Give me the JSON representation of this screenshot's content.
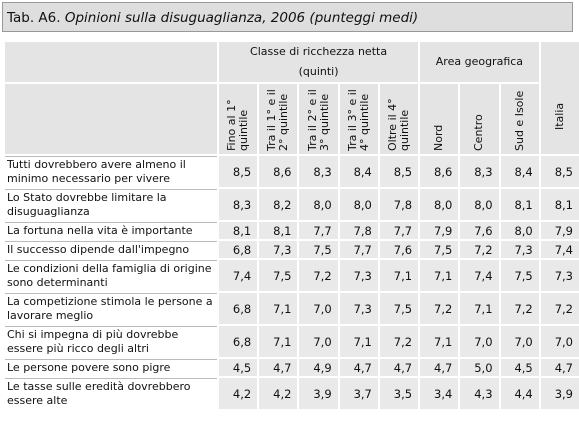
{
  "title": {
    "label": "Tab. A6.",
    "text": "Opinioni sulla disuguaglianza, 2006 (punteggi medi)"
  },
  "table": {
    "groups": [
      {
        "lines": [
          "Classe di ricchezza netta",
          "(quinti)"
        ],
        "span": 5
      },
      {
        "lines": [
          "Area geografica"
        ],
        "span": 3
      }
    ],
    "columns": [
      "Fino al 1° quintile",
      "Tra il 1° e il 2° quintile",
      "Tra il 2° e il 3° quintile",
      "Tra il 3° e il 4° quintile",
      "Oltre il 4° quintile",
      "Nord",
      "Centro",
      "Sud e Isole",
      "Italia"
    ],
    "rows": [
      [
        "Tutti dovrebbero avere almeno il minimo necessario per vivere",
        "8,5",
        "8,6",
        "8,3",
        "8,4",
        "8,5",
        "8,6",
        "8,3",
        "8,4",
        "8,5"
      ],
      [
        "Lo Stato dovrebbe limitare la disuguaglianza",
        "8,3",
        "8,2",
        "8,0",
        "8,0",
        "7,8",
        "8,0",
        "8,0",
        "8,1",
        "8,1"
      ],
      [
        "La fortuna nella vita è importante",
        "8,1",
        "8,1",
        "7,7",
        "7,8",
        "7,7",
        "7,9",
        "7,6",
        "8,0",
        "7,9"
      ],
      [
        "Il successo dipende dall'impegno",
        "6,8",
        "7,3",
        "7,5",
        "7,7",
        "7,6",
        "7,5",
        "7,2",
        "7,3",
        "7,4"
      ],
      [
        "Le condizioni della famiglia di origine sono determinanti",
        "7,4",
        "7,5",
        "7,2",
        "7,3",
        "7,1",
        "7,1",
        "7,4",
        "7,5",
        "7,3"
      ],
      [
        "La competizione stimola le persone a lavorare meglio",
        "6,8",
        "7,1",
        "7,0",
        "7,3",
        "7,5",
        "7,2",
        "7,1",
        "7,2",
        "7,2"
      ],
      [
        "Chi si impegna di più dovrebbe essere più ricco degli altri",
        "6,8",
        "7,1",
        "7,0",
        "7,1",
        "7,2",
        "7,1",
        "7,0",
        "7,0",
        "7,0"
      ],
      [
        "Le persone povere sono pigre",
        "4,5",
        "4,7",
        "4,9",
        "4,7",
        "4,7",
        "4,7",
        "5,0",
        "4,5",
        "4,7"
      ],
      [
        "Le tasse sulle eredità dovrebbero essere alte",
        "4,2",
        "4,2",
        "3,9",
        "3,7",
        "3,5",
        "3,4",
        "4,3",
        "4,4",
        "3,9"
      ]
    ]
  }
}
